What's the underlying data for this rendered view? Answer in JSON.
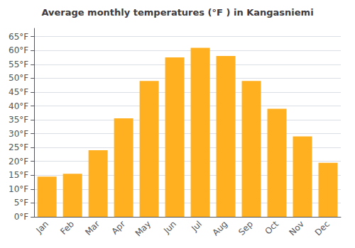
{
  "chart_data": {
    "type": "bar",
    "title": "Average monthly temperatures (°F ) in Kangasniemi",
    "categories": [
      "Jan",
      "Feb",
      "Mar",
      "Apr",
      "May",
      "Jun",
      "Jul",
      "Aug",
      "Sep",
      "Oct",
      "Nov",
      "Dec"
    ],
    "values": [
      14.5,
      15.5,
      24.0,
      35.5,
      49.0,
      57.5,
      61.0,
      58.0,
      49.0,
      39.0,
      29.0,
      19.5
    ],
    "color": "#FFB020",
    "ylim": [
      0,
      68
    ],
    "yticks": [
      {
        "value": 0,
        "label": "0°F"
      },
      {
        "value": 5,
        "label": "5°F"
      },
      {
        "value": 10,
        "label": "10°F"
      },
      {
        "value": 15,
        "label": "15°F"
      },
      {
        "value": 20,
        "label": "20°F"
      },
      {
        "value": 25,
        "label": "25°F"
      },
      {
        "value": 30,
        "label": "30°F"
      },
      {
        "value": 35,
        "label": "35°F"
      },
      {
        "value": 40,
        "label": "40°F"
      },
      {
        "value": 45,
        "label": "45°F"
      },
      {
        "value": 50,
        "label": "50°F"
      },
      {
        "value": 55,
        "label": "55°F"
      },
      {
        "value": 60,
        "label": "60°F"
      },
      {
        "value": 65,
        "label": "65°F"
      }
    ],
    "grid": true
  }
}
